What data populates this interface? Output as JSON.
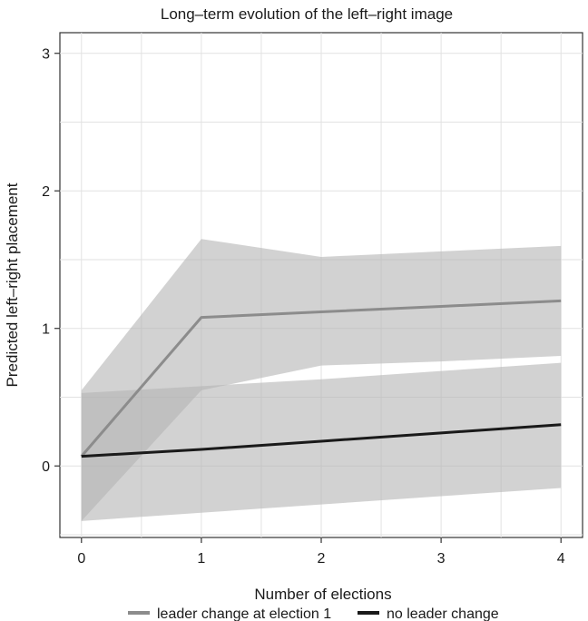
{
  "chart_data": {
    "type": "line",
    "title": "Long–term evolution of the left–right image",
    "xlabel": "Number of elections",
    "ylabel": "Predicted left–right placement",
    "x": [
      0,
      1,
      2,
      3,
      4
    ],
    "x_ticks": [
      "0",
      "1",
      "2",
      "3",
      "4"
    ],
    "y_ticks": [
      "0",
      "1",
      "2",
      "3"
    ],
    "xlim": [
      -0.18,
      4.18
    ],
    "ylim": [
      -0.52,
      3.15
    ],
    "grid": true,
    "legend_position": "bottom",
    "series": [
      {
        "name": "leader change at election 1",
        "color": "#8c8c8c",
        "values": [
          0.07,
          1.08,
          1.12,
          1.16,
          1.2
        ],
        "ci_lower": [
          -0.4,
          0.55,
          0.73,
          0.76,
          0.8
        ],
        "ci_upper": [
          0.55,
          1.65,
          1.52,
          1.56,
          1.6
        ]
      },
      {
        "name": "no leader change",
        "color": "#1a1a1a",
        "values": [
          0.07,
          0.12,
          0.18,
          0.24,
          0.3
        ],
        "ci_lower": [
          -0.4,
          -0.34,
          -0.28,
          -0.22,
          -0.16
        ],
        "ci_upper": [
          0.53,
          0.58,
          0.63,
          0.69,
          0.75
        ]
      }
    ],
    "band_color": "#b4b4b4"
  }
}
